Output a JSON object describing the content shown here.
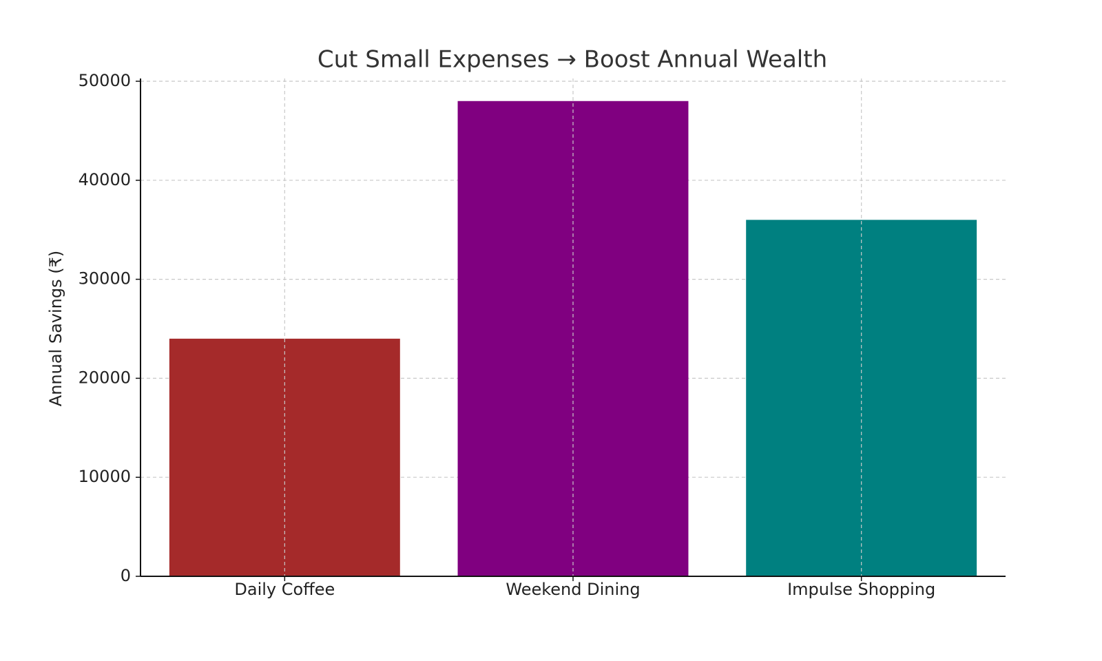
{
  "chart_data": {
    "type": "bar",
    "title": "Cut Small Expenses → Boost Annual Wealth",
    "y_label": "Annual Savings (₹)",
    "categories": [
      "Daily Coffee",
      "Weekend Dining",
      "Impulse Shopping"
    ],
    "values": [
      24000,
      48000,
      36000
    ],
    "colors": [
      "#a52a2a",
      "#800080",
      "#008080"
    ],
    "ylim": [
      0,
      50000
    ],
    "yticks": [
      0,
      10000,
      20000,
      30000,
      40000,
      50000
    ],
    "grid": true
  }
}
